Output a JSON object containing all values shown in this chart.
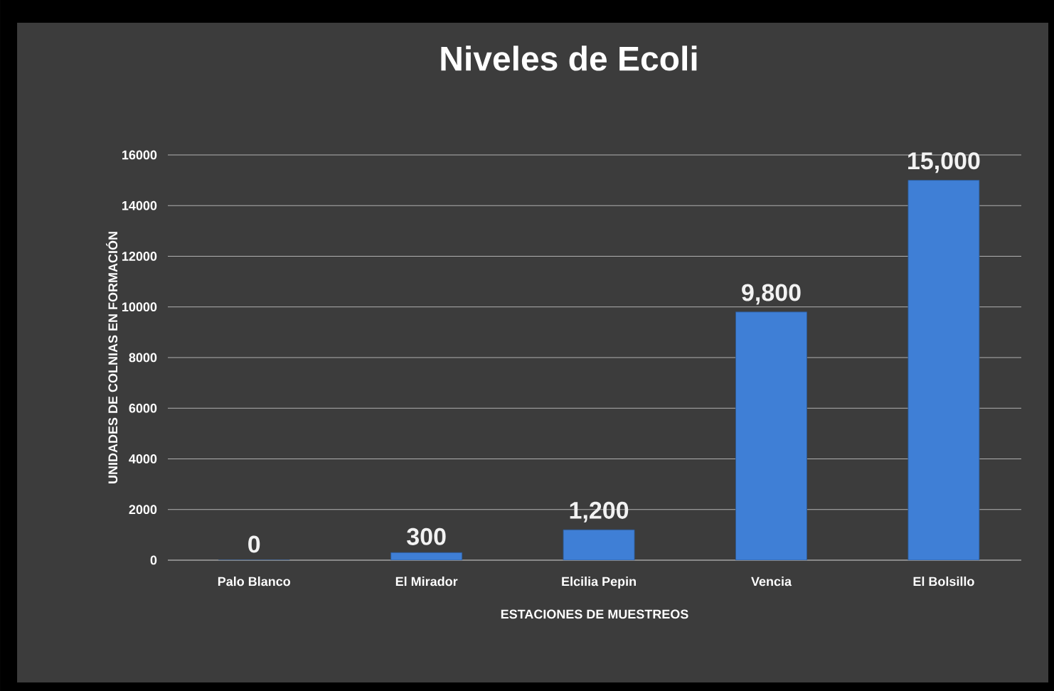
{
  "chart_data": {
    "type": "bar",
    "title": "Niveles de Ecoli",
    "xlabel": "ESTACIONES DE MUESTREOS",
    "ylabel": "UNIDADES DE COLNIAS EN FORMACIÓN",
    "categories": [
      "Palo Blanco",
      "El Mirador",
      "Elcilia Pepin",
      "Vencia",
      "El Bolsillo"
    ],
    "values": [
      0,
      300,
      1200,
      9800,
      15000
    ],
    "value_labels": [
      "0",
      "300",
      "1,200",
      "9,800",
      "15,000"
    ],
    "color": "#3f7fd6",
    "ylim": [
      0,
      16000
    ],
    "yticks": [
      0,
      2000,
      4000,
      6000,
      8000,
      10000,
      12000,
      14000,
      16000
    ],
    "grid": "y"
  }
}
